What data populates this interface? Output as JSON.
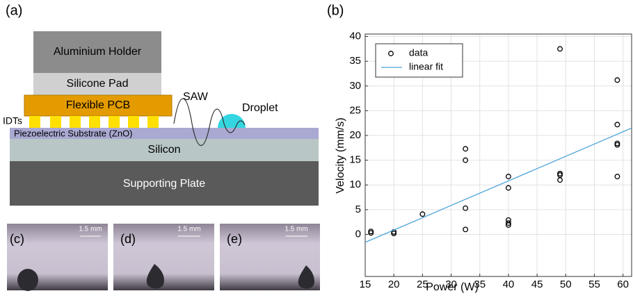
{
  "panel_labels": [
    "(a)",
    "(b)",
    "(c)",
    "(d)",
    "(e)"
  ],
  "diagram": {
    "layers": [
      "Aluminium Holder",
      "Silicone Pad",
      "Flexible PCB",
      "IDTs",
      "Piezoelectric Substrate (ZnO)",
      "Silicon",
      "Supporting Plate"
    ],
    "saw": "SAW",
    "droplet": "Droplet"
  },
  "photos": {
    "scale_bar": "1.5 mm"
  },
  "chart_data": {
    "type": "scatter",
    "xlabel": "Power (W)",
    "ylabel": "Velocity (mm/s)",
    "xlim": [
      15,
      61.5
    ],
    "ylim": [
      -8.5,
      40.5
    ],
    "xticks": [
      15,
      20,
      25,
      30,
      35,
      40,
      45,
      50,
      55,
      60
    ],
    "yticks": [
      0,
      5,
      10,
      15,
      20,
      25,
      30,
      35,
      40
    ],
    "grid": true,
    "legend": "upper left",
    "series": [
      {
        "name": "data",
        "type": "scatter",
        "color": "#000000",
        "x": [
          16,
          16,
          20,
          20,
          25,
          32.5,
          32.5,
          32.5,
          32.5,
          40,
          40,
          40,
          40,
          40,
          49,
          49,
          49,
          49,
          59,
          59,
          59,
          59,
          59
        ],
        "values": [
          0.3,
          0.6,
          0.2,
          0.5,
          4.1,
          17.3,
          15,
          5.3,
          1,
          11.7,
          9.4,
          2.9,
          2.3,
          1.9,
          37.5,
          12.3,
          12,
          11,
          31.2,
          22.2,
          18.4,
          18.1,
          11.7
        ]
      },
      {
        "name": "linear fit",
        "type": "line",
        "color": "#4aa3d9",
        "x": [
          15,
          61.5
        ],
        "values": [
          -1.6,
          21.5
        ]
      }
    ]
  }
}
